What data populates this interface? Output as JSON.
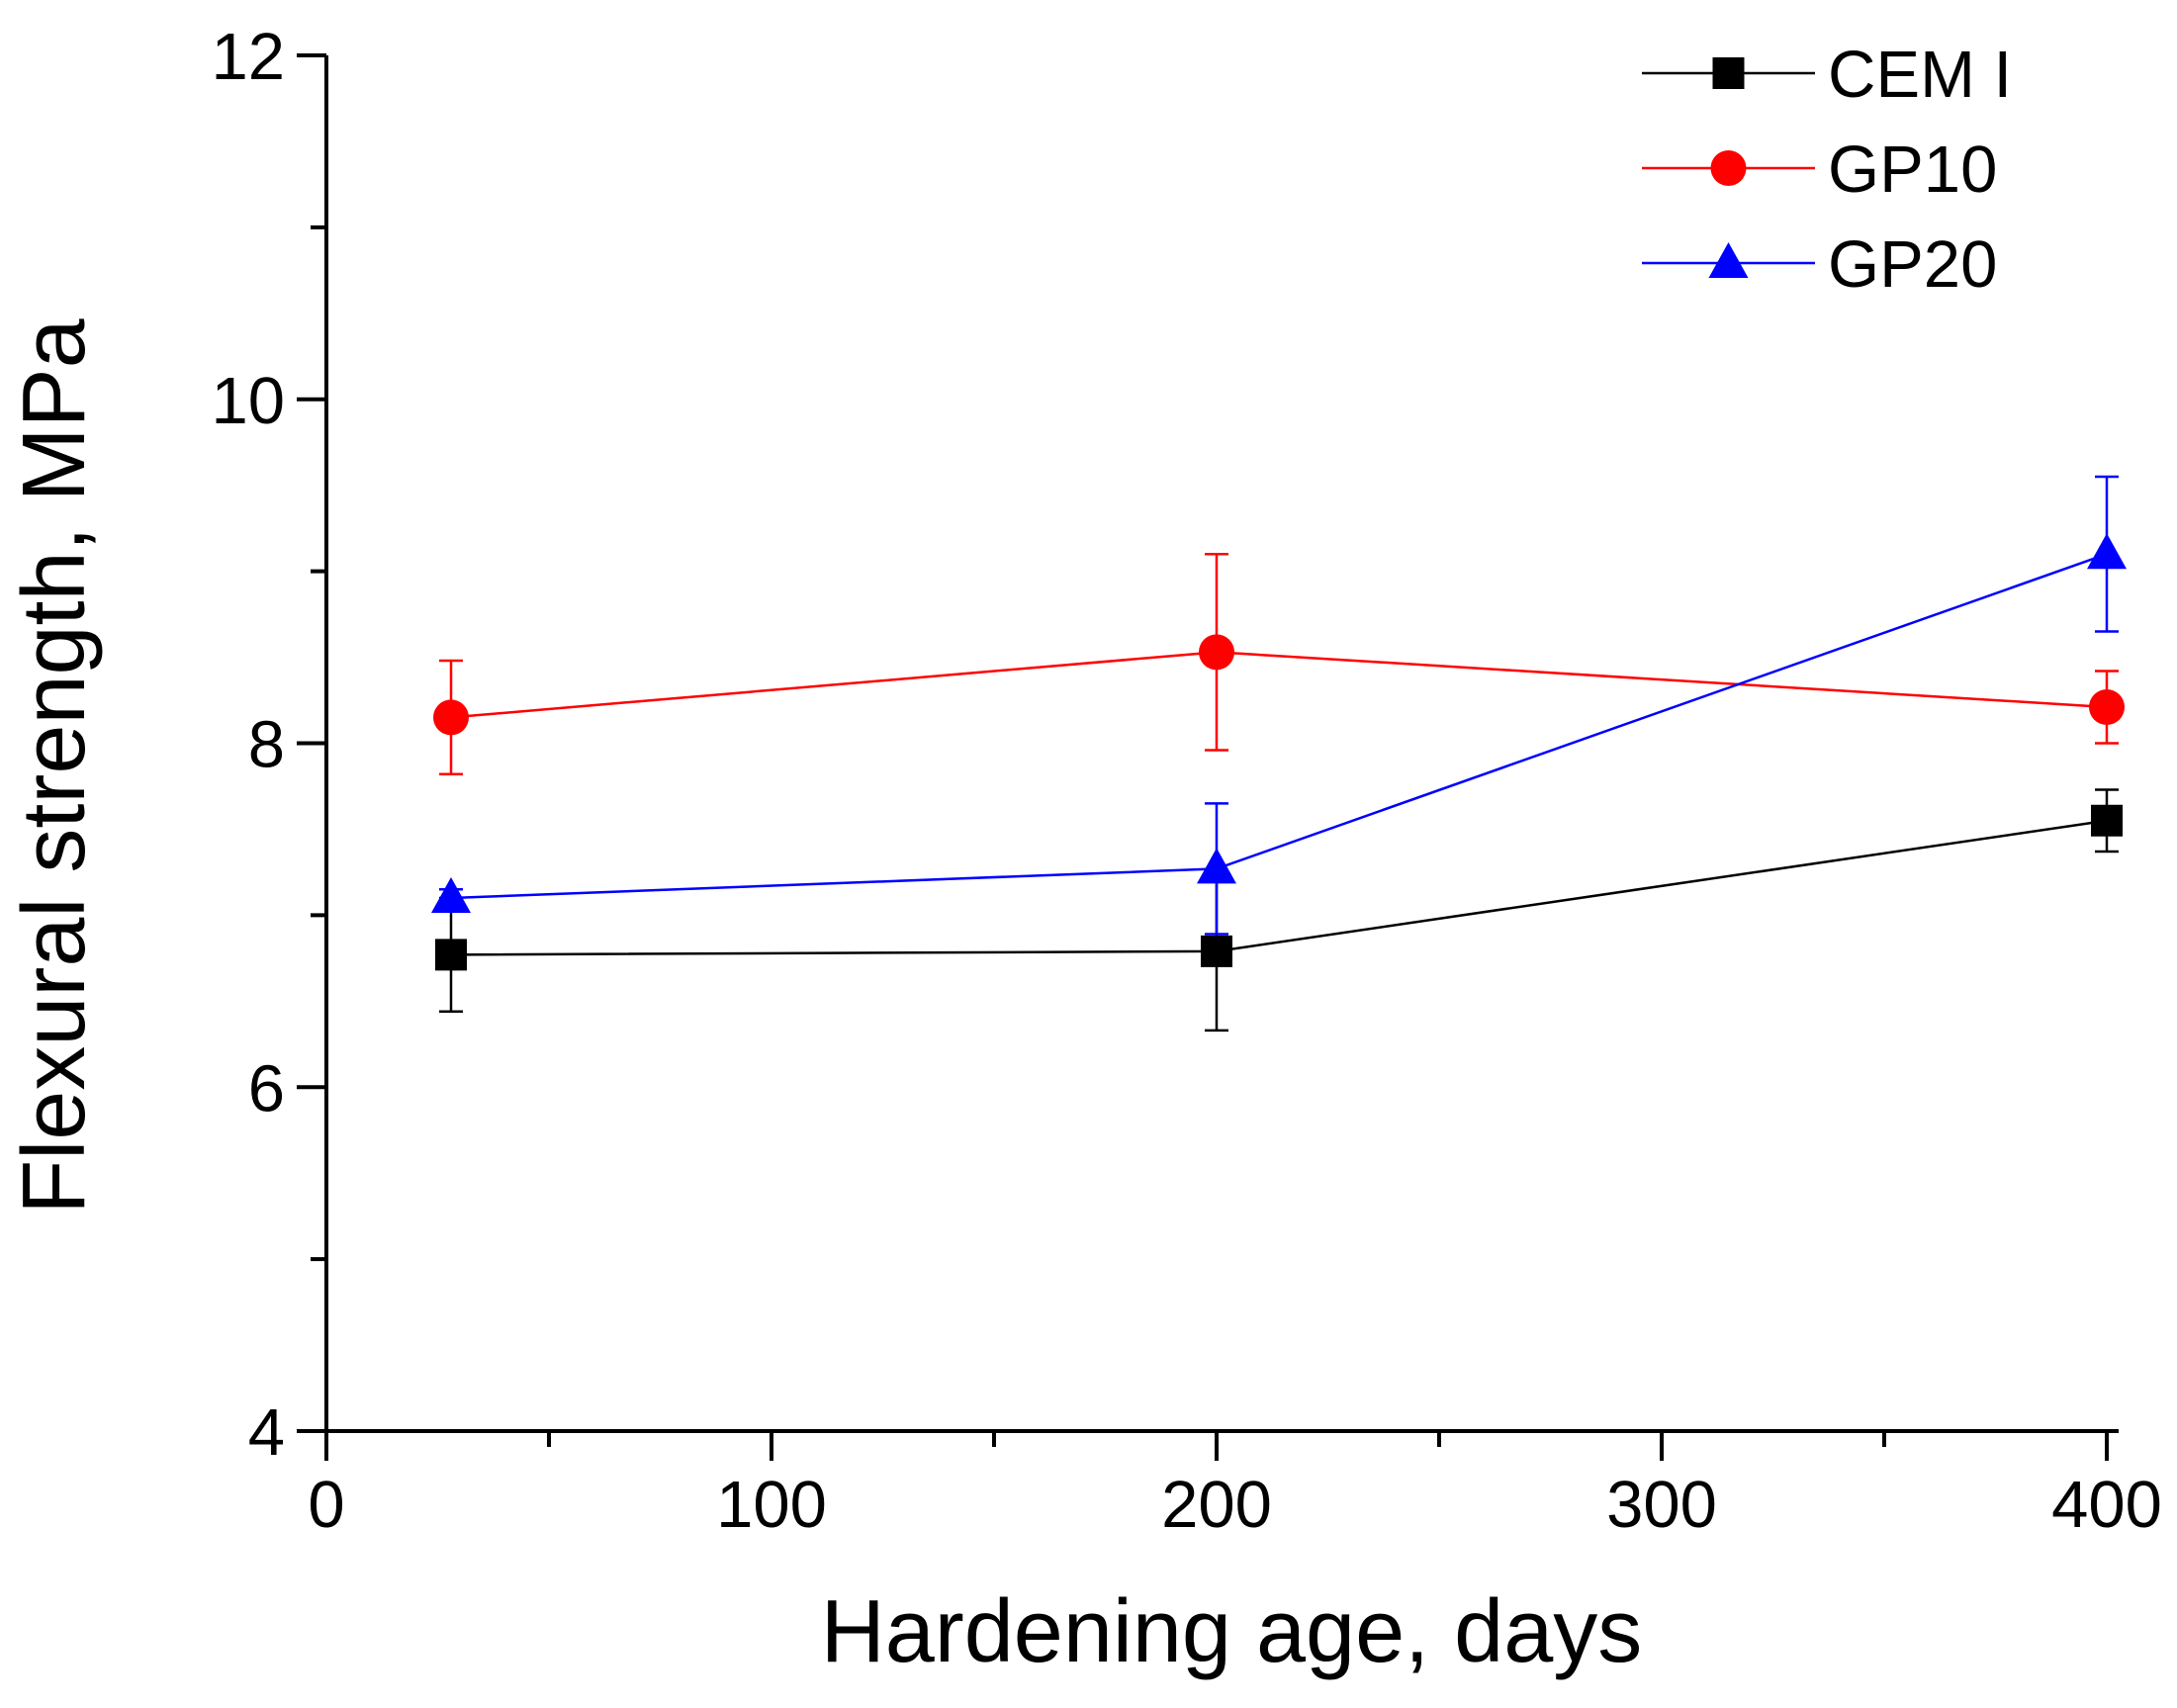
{
  "chart_data": {
    "type": "line",
    "xlabel": "Hardening age, days",
    "ylabel": "Flexural strength, MPa",
    "xlim": [
      0,
      400
    ],
    "ylim": [
      4,
      12
    ],
    "xticks": [
      "0",
      "100",
      "200",
      "300",
      "400"
    ],
    "yticks": [
      "4",
      "6",
      "8",
      "10",
      "12"
    ],
    "grid": false,
    "legend_position": "top-right",
    "series": [
      {
        "name": "CEM I",
        "color": "#000000",
        "marker": "square",
        "points": [
          {
            "x": 28,
            "y": 6.77,
            "err": 0.33
          },
          {
            "x": 200,
            "y": 6.79,
            "err": 0.46
          },
          {
            "x": 400,
            "y": 7.55,
            "err": 0.18
          }
        ]
      },
      {
        "name": "GP10",
        "color": "#ff0000",
        "marker": "circle",
        "points": [
          {
            "x": 28,
            "y": 8.15,
            "err": 0.33
          },
          {
            "x": 200,
            "y": 8.53,
            "err": 0.57
          },
          {
            "x": 400,
            "y": 8.21,
            "err": 0.21
          }
        ]
      },
      {
        "name": "GP20",
        "color": "#0000ff",
        "marker": "triangle",
        "points": [
          {
            "x": 28,
            "y": 7.1,
            "err": 0.05
          },
          {
            "x": 200,
            "y": 7.27,
            "err": 0.38
          },
          {
            "x": 400,
            "y": 9.1,
            "err": 0.45
          }
        ]
      }
    ]
  }
}
